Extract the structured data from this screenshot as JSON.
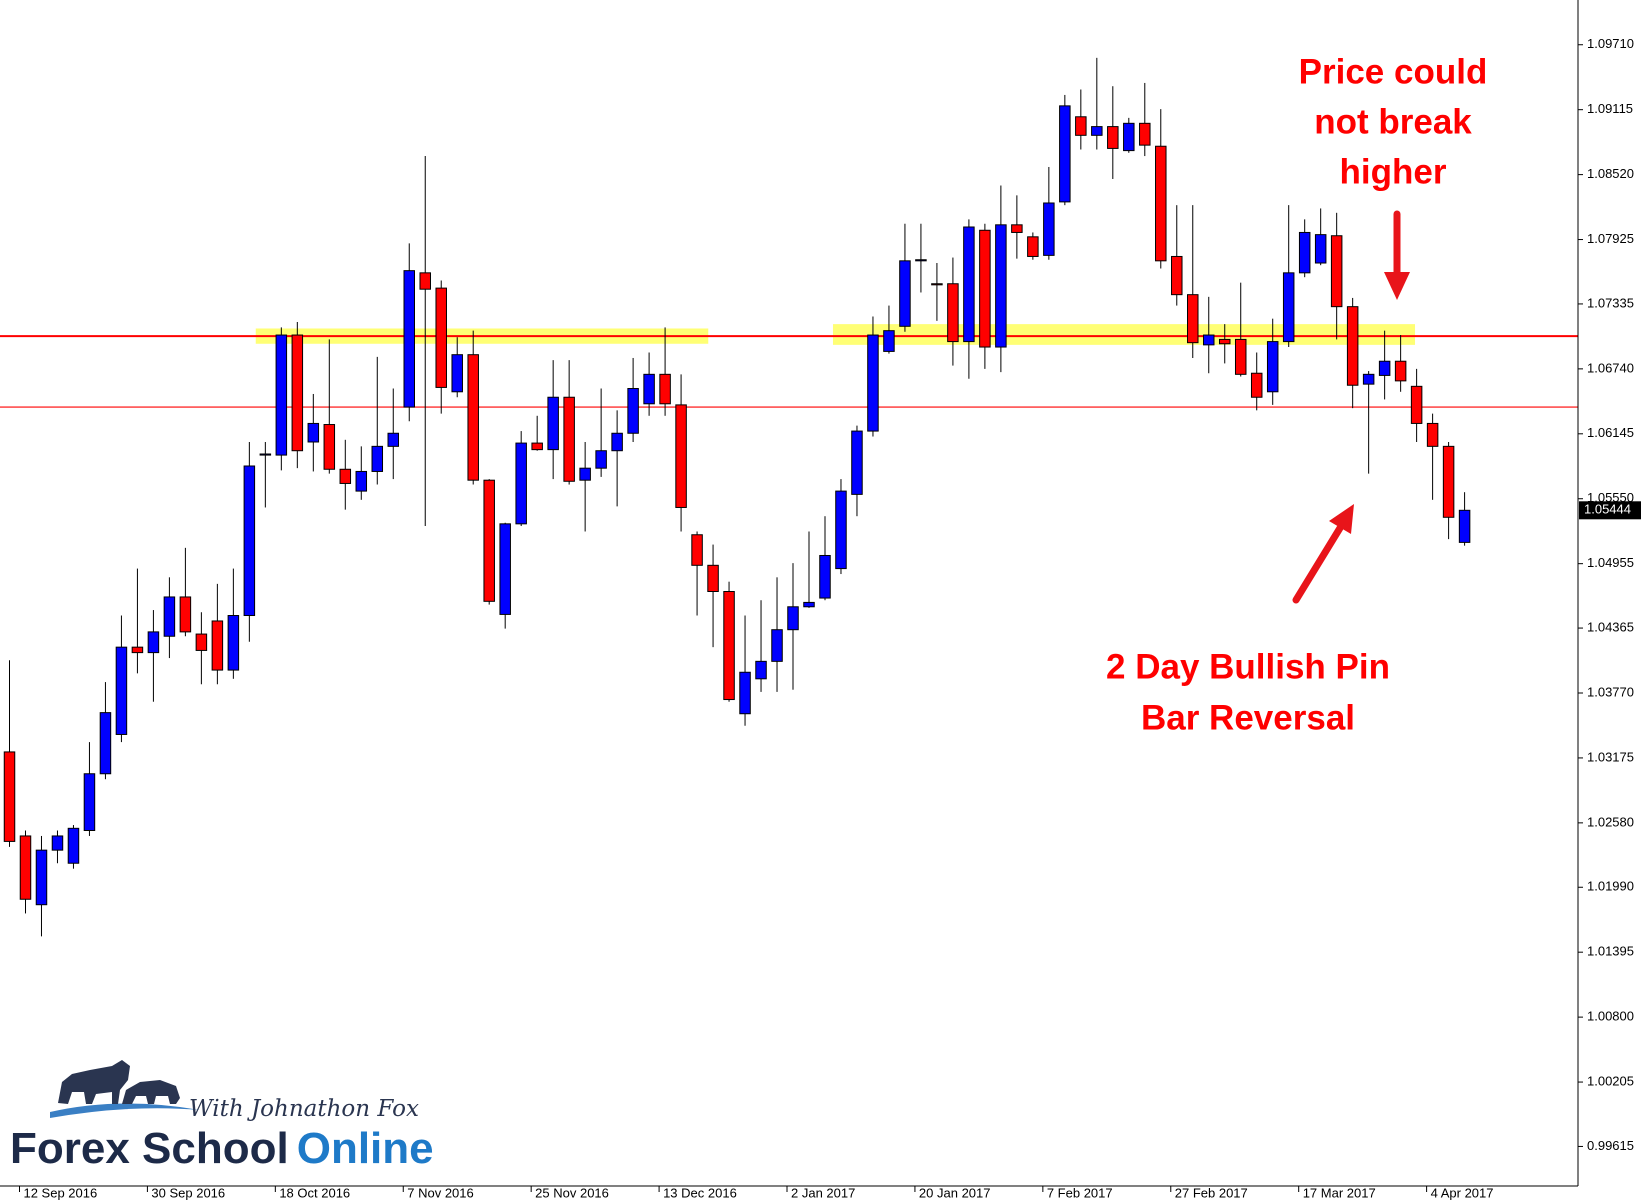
{
  "chart_data": {
    "type": "candlestick",
    "x": [
      null,
      "12 Sep 2016",
      null,
      null,
      null,
      null,
      null,
      null,
      null,
      "30 Sep 2016",
      null,
      null,
      null,
      null,
      null,
      null,
      null,
      "18 Oct 2016",
      null,
      null,
      null,
      null,
      null,
      null,
      null,
      "7 Nov 2016",
      null,
      null,
      null,
      null,
      null,
      null,
      null,
      "25 Nov 2016",
      null,
      null,
      null,
      null,
      null,
      null,
      null,
      "13 Dec 2016",
      null,
      null,
      null,
      null,
      null,
      null,
      null,
      "2 Jan 2017",
      null,
      null,
      null,
      null,
      null,
      null,
      null,
      "20 Jan 2017",
      null,
      null,
      null,
      null,
      null,
      null,
      null,
      "7 Feb 2017",
      null,
      null,
      null,
      null,
      null,
      null,
      null,
      "27 Feb 2017",
      null,
      null,
      null,
      null,
      null,
      null,
      null,
      "17 Mar 2017",
      null,
      null,
      null,
      null,
      null,
      null,
      null,
      "4 Apr 2017",
      null,
      null
    ],
    "open": [
      1.0323,
      1.0246,
      1.0183,
      1.0233,
      1.0221,
      1.0251,
      1.0303,
      1.0339,
      1.0419,
      1.0414,
      1.0429,
      1.0465,
      1.0431,
      1.0443,
      1.0398,
      1.0448,
      1.0595,
      1.0595,
      1.0705,
      1.0607,
      1.0623,
      1.0582,
      1.0562,
      1.058,
      1.0603,
      1.0639,
      1.0762,
      1.0748,
      1.0653,
      1.0687,
      1.0572,
      1.0449,
      1.0532,
      1.0606,
      1.06,
      1.0648,
      1.0572,
      1.0583,
      1.0599,
      1.0615,
      1.0642,
      1.0669,
      1.0641,
      1.0522,
      1.0494,
      1.047,
      1.0358,
      1.039,
      1.0406,
      1.0435,
      1.0456,
      1.0464,
      1.0491,
      1.0559,
      1.0617,
      1.069,
      1.0713,
      1.0773,
      1.0752,
      1.0752,
      1.0699,
      1.0801,
      1.0694,
      1.0806,
      1.0795,
      1.0778,
      1.0827,
      1.0905,
      1.0888,
      1.0896,
      1.0874,
      1.0899,
      1.0878,
      1.0777,
      1.0742,
      1.0696,
      1.0701,
      1.0701,
      1.067,
      1.0653,
      1.0699,
      1.0762,
      1.0771,
      1.0796,
      1.0731,
      1.066,
      1.0668,
      1.0681,
      1.0658,
      1.0624,
      1.0603,
      1.0515
    ],
    "high": [
      1.0407,
      1.0251,
      1.0246,
      1.0251,
      1.0256,
      1.0332,
      1.0387,
      1.0448,
      1.0491,
      1.0453,
      1.0483,
      1.051,
      1.0451,
      1.0477,
      1.0491,
      1.0607,
      1.0607,
      1.0712,
      1.0717,
      1.0651,
      1.0701,
      1.0609,
      1.0603,
      1.0685,
      1.0656,
      1.0789,
      1.0869,
      1.0755,
      1.0703,
      1.0709,
      1.0573,
      1.0533,
      1.0617,
      1.0631,
      1.0682,
      1.0682,
      1.0607,
      1.0656,
      1.0636,
      1.0684,
      1.0689,
      1.0712,
      1.0669,
      1.0525,
      1.0513,
      1.0479,
      1.0448,
      1.0462,
      1.0483,
      1.0496,
      1.0525,
      1.0539,
      1.0573,
      1.0622,
      1.0722,
      1.0732,
      1.0807,
      1.0807,
      1.0771,
      1.0776,
      1.0811,
      1.0807,
      1.0842,
      1.0833,
      1.0799,
      1.0859,
      1.0925,
      1.093,
      1.0959,
      1.0933,
      1.0904,
      1.0936,
      1.0912,
      1.0824,
      1.0824,
      1.074,
      1.0715,
      1.0753,
      1.0689,
      1.072,
      1.0824,
      1.0811,
      1.0821,
      1.0817,
      1.0739,
      1.0672,
      1.0709,
      1.0705,
      1.0674,
      1.0633,
      1.0607,
      1.0561
    ],
    "low": [
      1.0236,
      1.0175,
      1.0154,
      1.0221,
      1.0216,
      1.0246,
      1.0298,
      1.0332,
      1.0395,
      1.0369,
      1.0409,
      1.0429,
      1.0385,
      1.0385,
      1.039,
      1.0424,
      1.0547,
      1.0581,
      1.0583,
      1.058,
      1.0578,
      1.0545,
      1.0554,
      1.0568,
      1.0573,
      1.0626,
      1.053,
      1.0633,
      1.0648,
      1.0568,
      1.0458,
      1.0436,
      1.053,
      1.0599,
      1.0573,
      1.0568,
      1.0525,
      1.0575,
      1.0548,
      1.0607,
      1.0631,
      1.0631,
      1.0525,
      1.0448,
      1.0419,
      1.0369,
      1.0347,
      1.0378,
      1.0378,
      1.038,
      1.0455,
      1.0462,
      1.0486,
      1.0539,
      1.0612,
      1.0688,
      1.0708,
      1.0744,
      1.0718,
      1.0677,
      1.0665,
      1.0674,
      1.0671,
      1.0775,
      1.0774,
      1.0774,
      1.0824,
      1.0875,
      1.0875,
      1.0848,
      1.0872,
      1.0869,
      1.0766,
      1.0732,
      1.0684,
      1.067,
      1.0679,
      1.0667,
      1.0636,
      1.0641,
      1.0694,
      1.0758,
      1.0769,
      1.0701,
      1.0638,
      1.0578,
      1.0646,
      1.0653,
      1.0607,
      1.0554,
      1.0518,
      1.0512
    ],
    "close": [
      1.0241,
      1.0188,
      1.0233,
      1.0246,
      1.0253,
      1.0303,
      1.0359,
      1.0419,
      1.0414,
      1.0433,
      1.0465,
      1.0433,
      1.0416,
      1.0398,
      1.0448,
      1.0585,
      1.0596,
      1.0705,
      1.0599,
      1.0624,
      1.0582,
      1.0569,
      1.058,
      1.0603,
      1.0615,
      1.0764,
      1.0747,
      1.0657,
      1.0687,
      1.0572,
      1.0461,
      1.0532,
      1.0606,
      1.06,
      1.0648,
      1.0571,
      1.0583,
      1.0599,
      1.0615,
      1.0656,
      1.0669,
      1.0642,
      1.0547,
      1.0494,
      1.047,
      1.0371,
      1.0396,
      1.0406,
      1.0435,
      1.0456,
      1.046,
      1.0503,
      1.0562,
      1.0617,
      1.0705,
      1.0709,
      1.0773,
      1.0774,
      1.0751,
      1.0699,
      1.0804,
      1.0694,
      1.0806,
      1.0799,
      1.0777,
      1.0826,
      1.0915,
      1.0888,
      1.0896,
      1.0876,
      1.0899,
      1.0879,
      1.0773,
      1.0742,
      1.0698,
      1.0705,
      1.0697,
      1.0669,
      1.0648,
      1.0699,
      1.0762,
      1.0799,
      1.0797,
      1.0731,
      1.0659,
      1.0669,
      1.0681,
      1.0663,
      1.0624,
      1.0603,
      1.0538,
      1.05444
    ],
    "up_color": "#0000ff",
    "down_color": "#ff0000",
    "ylim": [
      0.9928,
      1.1012
    ],
    "yticks": [
      {
        "value": 1.0971,
        "label": "1.09710"
      },
      1.09115,
      {
        "value": 1.0852,
        "label": "1.08520"
      },
      1.07925,
      1.07335,
      {
        "value": 1.0674,
        "label": "1.06740"
      },
      1.06145,
      {
        "value": 1.0555,
        "label": "1.05550"
      },
      1.04955,
      1.04365,
      {
        "value": 1.0377,
        "label": "1.03770"
      },
      1.03175,
      {
        "value": 1.0258,
        "label": "1.02580"
      },
      {
        "value": 1.0199,
        "label": "1.01990"
      },
      1.01395,
      {
        "value": 1.008,
        "label": "1.00800"
      },
      1.00205,
      0.99615
    ],
    "last_price": 1.05444,
    "levels": [
      1.0704,
      1.0639
    ],
    "level_color": "#ff0000",
    "zones": [
      [
        1.0697,
        1.0711
      ],
      [
        1.0696,
        1.0715
      ]
    ],
    "zone_color": "#ffff66",
    "annotations": [
      {
        "lines": [
          "Price could",
          "not break",
          "higher"
        ]
      },
      {
        "lines": [
          "2 Day Bullish Pin",
          "Bar Reversal"
        ]
      }
    ]
  },
  "branding": {
    "tagline": "With Johnathon Fox",
    "name_1": "Forex School",
    "name_2": "Online"
  }
}
